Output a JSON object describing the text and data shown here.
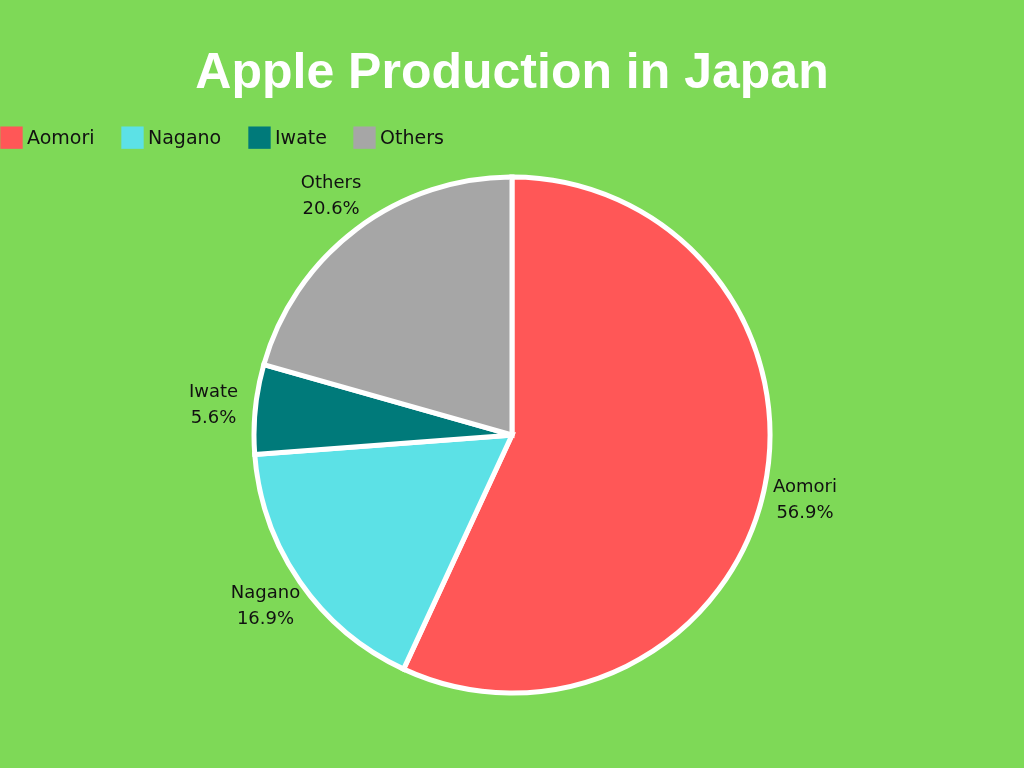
{
  "chart_data": {
    "type": "pie",
    "title": "Apple Production in Japan",
    "categories": [
      "Aomori",
      "Nagano",
      "Iwate",
      "Others"
    ],
    "values": [
      56.9,
      16.9,
      5.6,
      20.6
    ],
    "colors": [
      "#ff5757",
      "#5ce1e6",
      "#007a7a",
      "#a6a6a6"
    ],
    "value_labels": [
      "56.9%",
      "16.9%",
      "5.6%",
      "20.6%"
    ],
    "legend": "top"
  }
}
